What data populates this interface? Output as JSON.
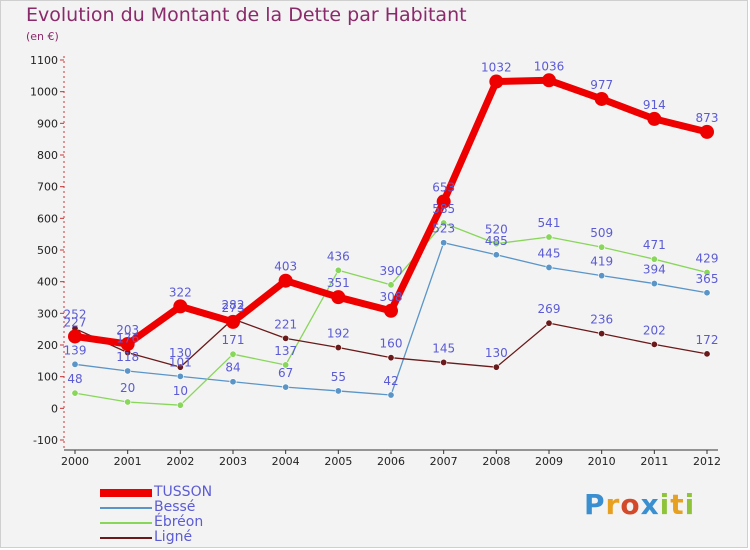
{
  "title": "Evolution du Montant de la Dette par Habitant",
  "unit": "(en €)",
  "logo": "Proxiti",
  "chart_data": {
    "type": "line",
    "x": [
      2000,
      2001,
      2002,
      2003,
      2004,
      2005,
      2006,
      2007,
      2008,
      2009,
      2010,
      2011,
      2012
    ],
    "yticks": [
      -100,
      0,
      100,
      200,
      300,
      400,
      500,
      600,
      700,
      800,
      900,
      1000,
      1100
    ],
    "ylim": [
      -100,
      1100
    ],
    "grid": false,
    "legend": "bottom-left",
    "series": [
      {
        "name": "TUSSON",
        "color": "#ee0000",
        "labelColor": "#5b5bd6",
        "values": [
          227,
          203,
          322,
          273,
          403,
          351,
          308,
          653,
          1032,
          1036,
          977,
          914,
          873
        ]
      },
      {
        "name": "Bessé",
        "color": "#5b95c8",
        "labelColor": "#5b5bd6",
        "values": [
          139,
          118,
          101,
          84,
          67,
          55,
          42,
          523,
          485,
          445,
          419,
          394,
          365
        ]
      },
      {
        "name": "Ébréon",
        "color": "#88d65a",
        "labelColor": "#5b5bd6",
        "values": [
          48,
          20,
          10,
          171,
          137,
          436,
          390,
          585,
          520,
          541,
          509,
          471,
          429
        ]
      },
      {
        "name": "Ligné",
        "color": "#6a1a1a",
        "labelColor": "#5b5bd6",
        "values": [
          252,
          176,
          130,
          282,
          221,
          192,
          160,
          145,
          130,
          269,
          236,
          202,
          172
        ]
      }
    ]
  }
}
